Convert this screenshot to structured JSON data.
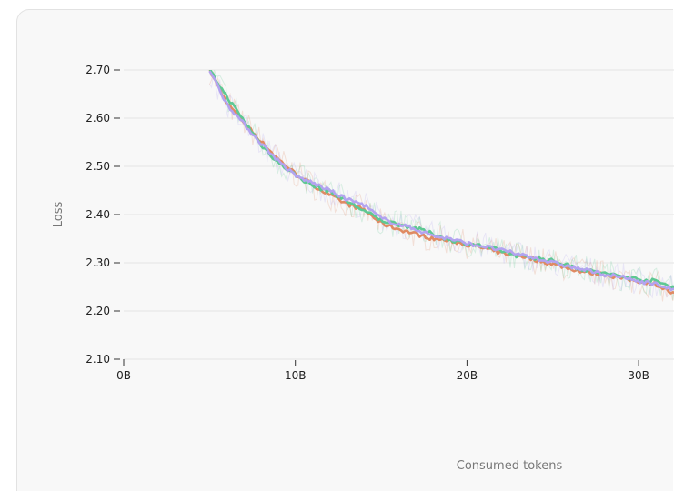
{
  "chart_data": {
    "type": "line",
    "xlabel": "Consumed tokens",
    "ylabel": "Loss",
    "xlim": [
      0,
      32.5
    ],
    "ylim": [
      2.1,
      2.72
    ],
    "x_ticks": [
      "0B",
      "10B",
      "20B",
      "30B"
    ],
    "x_tick_values": [
      0,
      10,
      20,
      30
    ],
    "y_ticks": [
      "2.70",
      "2.60",
      "2.50",
      "2.40",
      "2.30",
      "2.20",
      "2.10"
    ],
    "y_tick_values": [
      2.7,
      2.6,
      2.5,
      2.4,
      2.3,
      2.2,
      2.1
    ],
    "grid": "horizontal",
    "x": [
      5,
      6,
      7,
      8,
      9,
      10,
      11,
      12,
      13,
      14,
      15,
      16,
      17,
      18,
      19,
      20,
      21,
      22,
      23,
      24,
      25,
      26,
      27,
      28,
      29,
      30,
      31,
      32
    ],
    "series": [
      {
        "color": "#e08a63",
        "values": [
          2.7,
          2.632,
          2.592,
          2.552,
          2.515,
          2.485,
          2.462,
          2.44,
          2.422,
          2.41,
          2.382,
          2.37,
          2.36,
          2.35,
          2.346,
          2.338,
          2.33,
          2.32,
          2.316,
          2.306,
          2.298,
          2.288,
          2.28,
          2.276,
          2.268,
          2.262,
          2.256,
          2.236
        ]
      },
      {
        "color": "#5ec893",
        "values": [
          2.7,
          2.645,
          2.595,
          2.545,
          2.508,
          2.482,
          2.46,
          2.448,
          2.428,
          2.408,
          2.388,
          2.38,
          2.372,
          2.36,
          2.348,
          2.34,
          2.334,
          2.325,
          2.314,
          2.31,
          2.304,
          2.294,
          2.284,
          2.278,
          2.272,
          2.266,
          2.262,
          2.25
        ]
      },
      {
        "color": "#b3a3f0",
        "values": [
          2.7,
          2.63,
          2.588,
          2.548,
          2.512,
          2.48,
          2.466,
          2.45,
          2.432,
          2.42,
          2.392,
          2.38,
          2.37,
          2.356,
          2.35,
          2.34,
          2.334,
          2.326,
          2.318,
          2.31,
          2.3,
          2.292,
          2.284,
          2.276,
          2.27,
          2.262,
          2.256,
          2.245
        ]
      }
    ]
  }
}
